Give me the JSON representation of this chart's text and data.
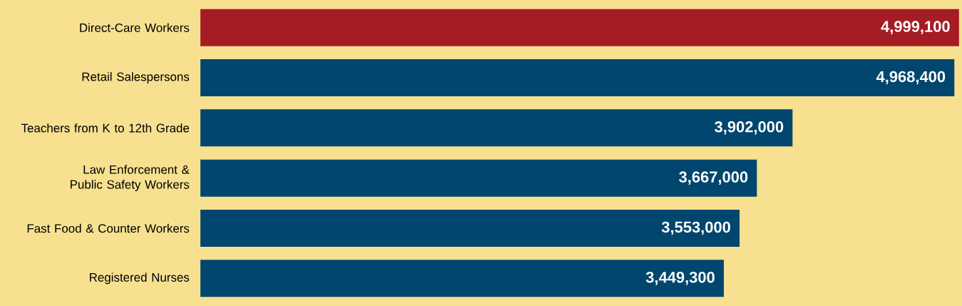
{
  "chart_data": {
    "type": "bar",
    "orientation": "horizontal",
    "categories": [
      "Direct-Care Workers",
      "Retail Salespersons",
      "Teachers from K to 12th Grade",
      "Law Enforcement & Public Safety Workers",
      "Fast Food & Counter Workers",
      "Registered Nurses"
    ],
    "values": [
      4999100,
      4968400,
      3902000,
      3667000,
      3553000,
      3449300
    ],
    "value_labels": [
      "4,999,100",
      "4,968,400",
      "3,902,000",
      "3,667,000",
      "3,553,000",
      "3,449,300"
    ],
    "colors": [
      "#a51c24",
      "#00466e",
      "#00466e",
      "#00466e",
      "#00466e",
      "#00466e"
    ],
    "xlim": [
      0,
      5000000
    ]
  }
}
